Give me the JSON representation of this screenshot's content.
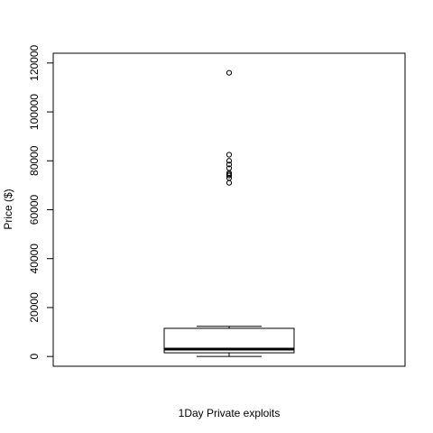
{
  "chart_data": {
    "type": "boxplot",
    "title": "",
    "xlabel": "1Day Private exploits",
    "ylabel": "Price ($)",
    "ylim": [
      -4000,
      124000
    ],
    "y_ticks": [
      0,
      20000,
      40000,
      60000,
      80000,
      100000,
      120000
    ],
    "y_tick_labels": [
      "0",
      "20000",
      "40000",
      "60000",
      "80000",
      "100000",
      "120000"
    ],
    "grid": false,
    "legend": "none",
    "box": {
      "whisker_low": 0,
      "q1": 1500,
      "median": 3000,
      "q3": 11500,
      "whisker_high": 12300
    },
    "outliers": [
      116000,
      82500,
      80000,
      78500,
      77000,
      75000,
      74500,
      74000,
      73000,
      71000
    ],
    "colors": {
      "stroke": "#000000",
      "background": "#ffffff"
    }
  }
}
